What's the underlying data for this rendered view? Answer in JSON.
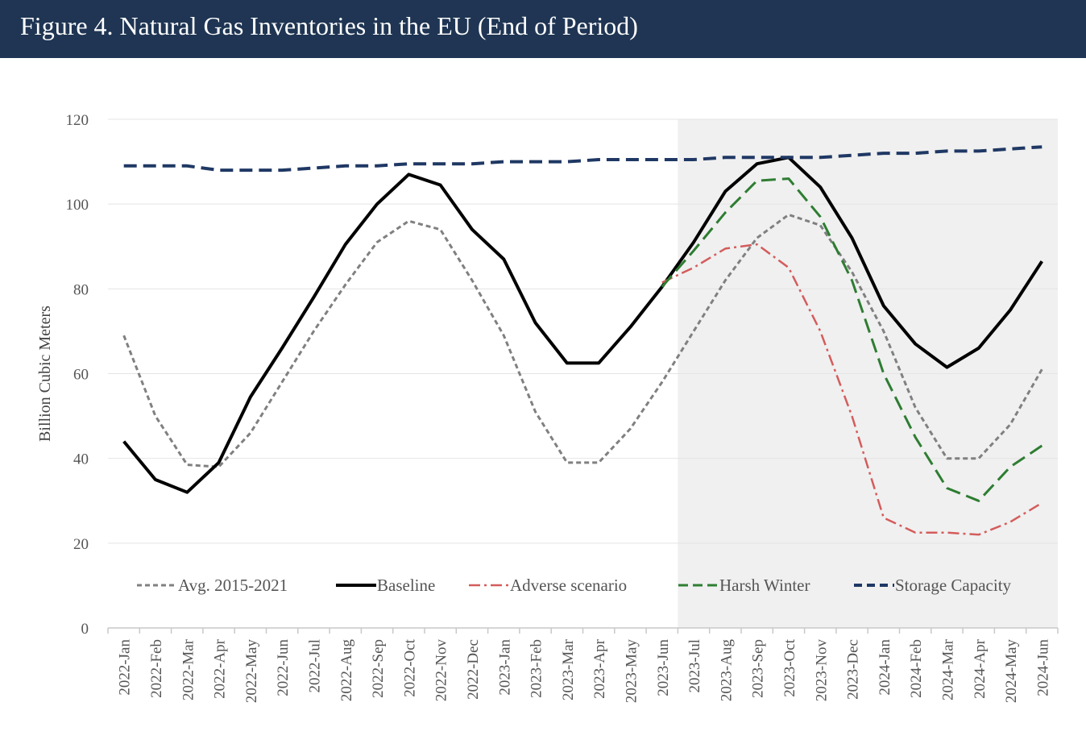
{
  "title": "Figure 4. Natural Gas Inventories in the EU (End of Period)",
  "colors": {
    "header_bg": "#1f3553",
    "forecast_shade": "#f0f0f0"
  },
  "chart_data": {
    "type": "line",
    "ylabel": "Billion Cubic Meters",
    "ylim": [
      0,
      120
    ],
    "yticks": [
      0,
      20,
      40,
      60,
      80,
      100,
      120
    ],
    "grid": true,
    "legend_position": "bottom-inside",
    "shaded_region": {
      "from": "2023-Jun",
      "to": "2024-Jun",
      "color": "#f0f0f0"
    },
    "categories": [
      "2022-Jan",
      "2022-Feb",
      "2022-Mar",
      "2022-Apr",
      "2022-May",
      "2022-Jun",
      "2022-Jul",
      "2022-Aug",
      "2022-Sep",
      "2022-Oct",
      "2022-Nov",
      "2022-Dec",
      "2023-Jan",
      "2023-Feb",
      "2023-Mar",
      "2023-Apr",
      "2023-May",
      "2023-Jun",
      "2023-Jul",
      "2023-Aug",
      "2023-Sep",
      "2023-Oct",
      "2023-Nov",
      "2023-Dec",
      "2024-Jan",
      "2024-Feb",
      "2024-Mar",
      "2024-Apr",
      "2024-May",
      "2024-Jun"
    ],
    "series": [
      {
        "name": "Avg. 2015-2021",
        "color": "#808080",
        "dash": "6,4",
        "width": 3,
        "values": [
          69,
          50,
          38.5,
          38,
          46,
          58,
          70,
          81,
          91,
          96,
          94,
          82,
          69,
          51,
          39,
          39,
          47,
          58,
          70,
          82,
          92,
          97.5,
          95,
          84,
          70,
          52,
          40,
          40,
          48,
          61
        ]
      },
      {
        "name": "Baseline",
        "color": "#000000",
        "dash": "",
        "width": 4,
        "values": [
          44,
          35,
          32,
          39,
          54.5,
          66,
          78,
          90.5,
          100,
          107,
          104.5,
          94,
          87,
          72,
          62.5,
          62.5,
          71,
          80.5,
          91,
          103,
          109.5,
          111,
          104,
          92,
          76,
          67,
          61.5,
          66,
          75,
          86.5
        ]
      },
      {
        "name": "Adverse scenario",
        "color": "#d45c5c",
        "dash": "14,5,3,5",
        "width": 2.5,
        "start_index": 17,
        "values": [
          null,
          null,
          null,
          null,
          null,
          null,
          null,
          null,
          null,
          null,
          null,
          null,
          null,
          null,
          null,
          null,
          null,
          81.5,
          85,
          89.5,
          90.5,
          85,
          70,
          50,
          26,
          22.5,
          22.5,
          22,
          25,
          29.5
        ]
      },
      {
        "name": "Harsh Winter",
        "color": "#2e7d32",
        "dash": "18,8",
        "width": 3,
        "start_index": 17,
        "values": [
          null,
          null,
          null,
          null,
          null,
          null,
          null,
          null,
          null,
          null,
          null,
          null,
          null,
          null,
          null,
          null,
          null,
          80.5,
          89,
          98,
          105.5,
          106,
          97,
          82,
          60,
          45,
          33,
          30,
          38,
          43
        ]
      },
      {
        "name": "Storage Capacity",
        "color": "#1f3864",
        "dash": "16,8",
        "width": 4,
        "values": [
          109,
          109,
          109,
          108,
          108,
          108,
          108.5,
          109,
          109,
          109.5,
          109.5,
          109.5,
          110,
          110,
          110,
          110.5,
          110.5,
          110.5,
          110.5,
          111,
          111,
          111,
          111,
          111.5,
          112,
          112,
          112.5,
          112.5,
          113,
          113.5
        ]
      }
    ]
  }
}
